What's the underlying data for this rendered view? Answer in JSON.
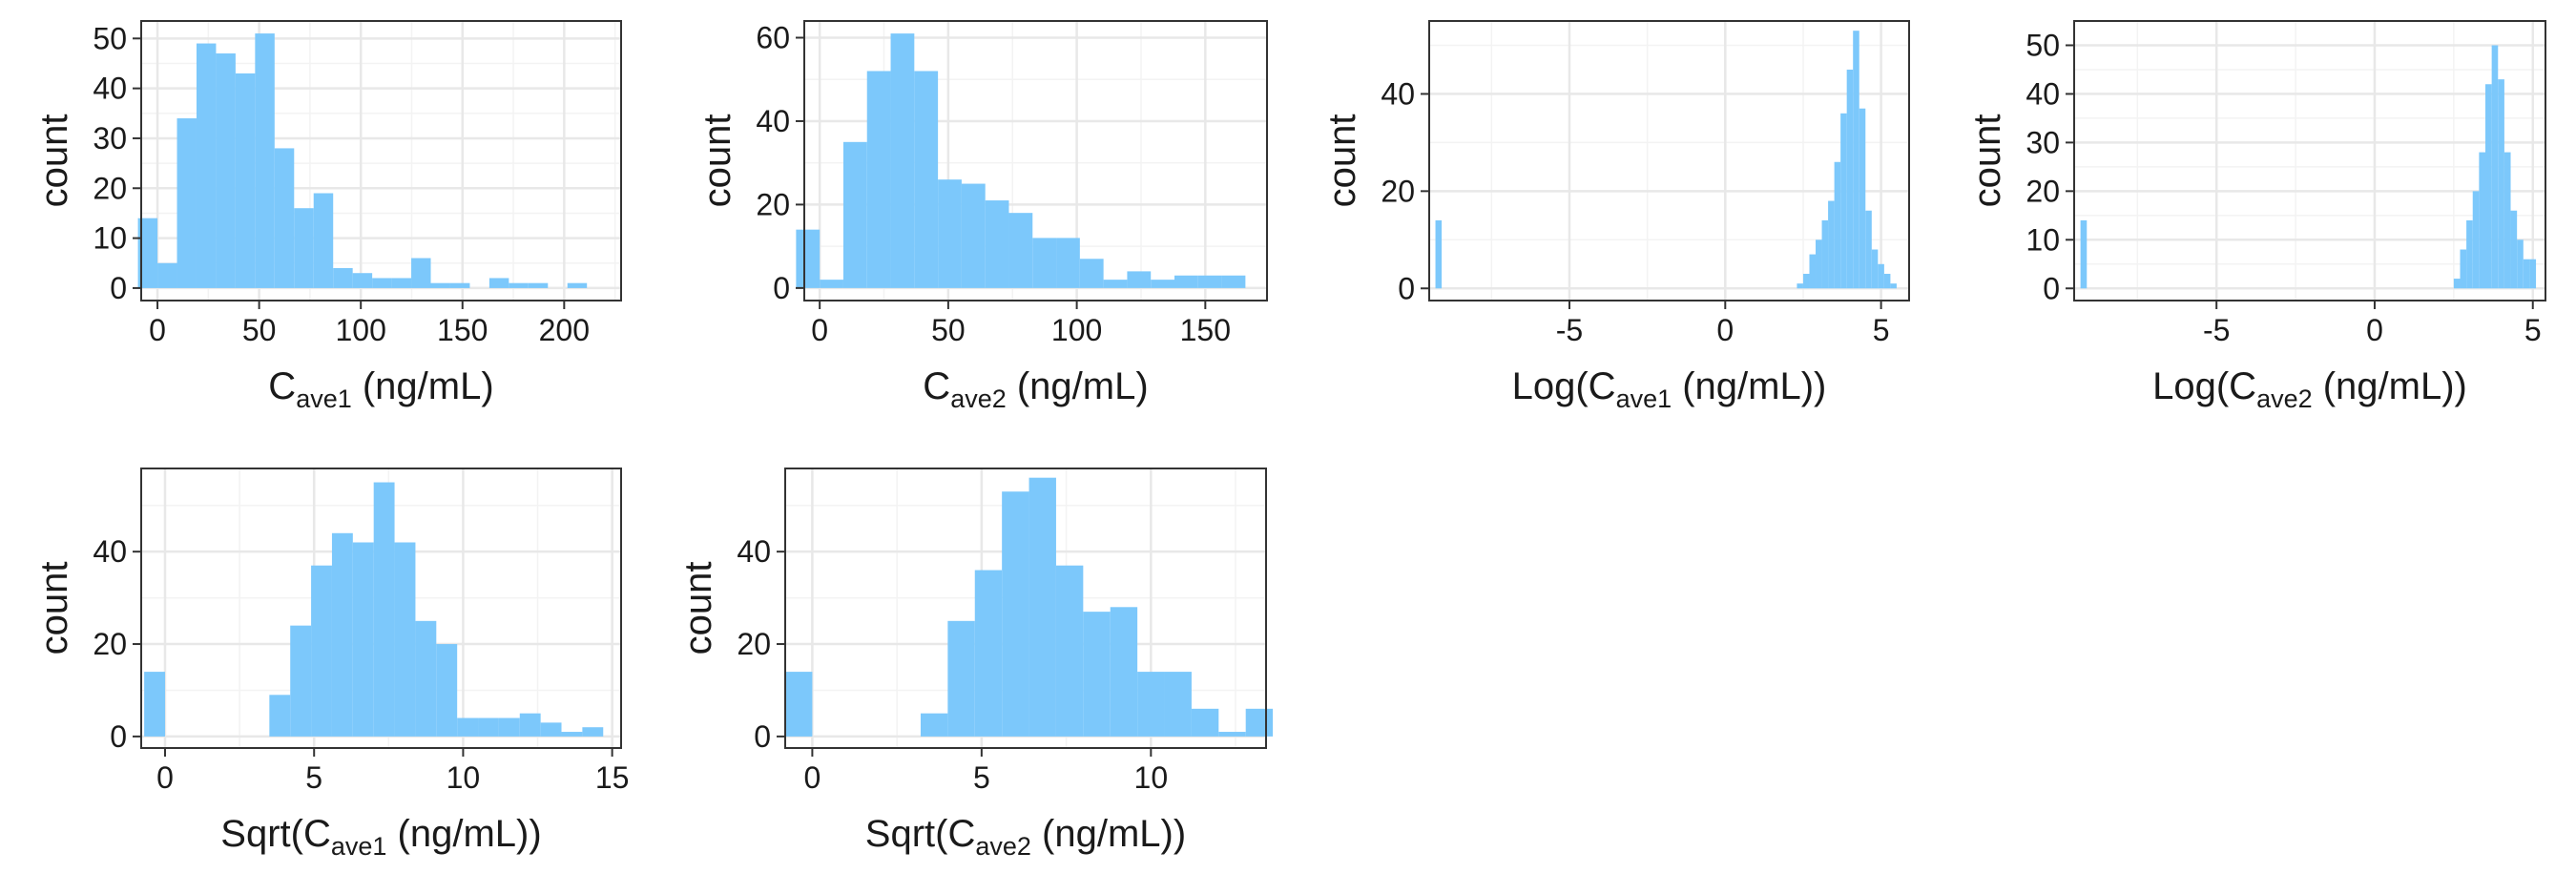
{
  "colors": {
    "bar_fill": "#7cc8fb",
    "panel_border": "#333333",
    "grid_major": "#e8e8e8",
    "grid_minor": "#f3f3f3",
    "tick": "#333333"
  },
  "chart_data": [
    {
      "type": "bar",
      "ylabel": "count",
      "xlabel": {
        "pre": "C",
        "sub": "ave1",
        "post": " (ng/mL)"
      },
      "xlim": [
        -8,
        228
      ],
      "ylim": [
        -2.5,
        53.5
      ],
      "xticks": [
        0,
        50,
        100,
        150,
        200
      ],
      "yticks": [
        0,
        10,
        20,
        30,
        40,
        50
      ],
      "bin_width": 9.6,
      "bins": [
        [
          -4.8,
          14
        ],
        [
          4.8,
          5
        ],
        [
          14.4,
          34
        ],
        [
          24.0,
          49
        ],
        [
          33.6,
          47
        ],
        [
          43.2,
          43
        ],
        [
          52.8,
          51
        ],
        [
          62.4,
          28
        ],
        [
          72.0,
          16
        ],
        [
          81.6,
          19
        ],
        [
          91.2,
          4
        ],
        [
          100.8,
          3
        ],
        [
          110.4,
          2
        ],
        [
          120.0,
          2
        ],
        [
          129.6,
          6
        ],
        [
          139.2,
          1
        ],
        [
          148.8,
          1
        ],
        [
          158.4,
          0
        ],
        [
          168.0,
          2
        ],
        [
          177.6,
          1
        ],
        [
          187.2,
          1
        ],
        [
          196.8,
          0
        ],
        [
          206.4,
          1
        ],
        [
          216.0,
          0
        ]
      ],
      "grid": true
    },
    {
      "type": "bar",
      "ylabel": "count",
      "xlabel": {
        "pre": "C",
        "sub": "ave2",
        "post": " (ng/mL)"
      },
      "xlim": [
        -6,
        174
      ],
      "ylim": [
        -3,
        64
      ],
      "xticks": [
        0,
        50,
        100,
        150
      ],
      "yticks": [
        0,
        20,
        40,
        60
      ],
      "bin_width": 9.2,
      "bins": [
        [
          -4.6,
          14
        ],
        [
          4.6,
          2
        ],
        [
          13.8,
          35
        ],
        [
          23.0,
          52
        ],
        [
          32.2,
          61
        ],
        [
          41.4,
          52
        ],
        [
          50.6,
          26
        ],
        [
          59.8,
          25
        ],
        [
          69.0,
          21
        ],
        [
          78.2,
          18
        ],
        [
          87.4,
          12
        ],
        [
          96.6,
          12
        ],
        [
          105.8,
          7
        ],
        [
          115.0,
          2
        ],
        [
          124.2,
          4
        ],
        [
          133.4,
          2
        ],
        [
          142.6,
          3
        ],
        [
          151.8,
          3
        ],
        [
          161.0,
          3
        ]
      ],
      "grid": true
    },
    {
      "type": "bar",
      "ylabel": "count",
      "xlabel": {
        "pre": "Log(C",
        "sub": "ave1",
        "post": " (ng/mL))"
      },
      "xlim": [
        -9.5,
        5.9
      ],
      "ylim": [
        -2.5,
        55
      ],
      "xticks": [
        -5,
        0,
        5
      ],
      "yticks": [
        0,
        20,
        40
      ],
      "bin_width": 0.2,
      "bins": [
        [
          -9.2,
          14
        ],
        [
          2.4,
          1
        ],
        [
          2.6,
          3
        ],
        [
          2.8,
          7
        ],
        [
          3.0,
          10
        ],
        [
          3.2,
          14
        ],
        [
          3.4,
          18
        ],
        [
          3.6,
          26
        ],
        [
          3.8,
          36
        ],
        [
          4.0,
          45
        ],
        [
          4.2,
          53
        ],
        [
          4.4,
          37
        ],
        [
          4.6,
          16
        ],
        [
          4.8,
          8
        ],
        [
          5.0,
          5
        ],
        [
          5.2,
          3
        ],
        [
          5.4,
          1
        ]
      ],
      "grid": true
    },
    {
      "type": "bar",
      "ylabel": "count",
      "xlabel": {
        "pre": "Log(C",
        "sub": "ave2",
        "post": " (ng/mL))"
      },
      "xlim": [
        -9.5,
        5.4
      ],
      "ylim": [
        -2.5,
        55
      ],
      "xticks": [
        -5,
        0,
        5
      ],
      "yticks": [
        0,
        10,
        20,
        30,
        40,
        50
      ],
      "bin_width": 0.2,
      "bins": [
        [
          -9.2,
          14
        ],
        [
          2.6,
          2
        ],
        [
          2.8,
          8
        ],
        [
          3.0,
          14
        ],
        [
          3.2,
          20
        ],
        [
          3.4,
          28
        ],
        [
          3.6,
          42
        ],
        [
          3.8,
          50
        ],
        [
          4.0,
          43
        ],
        [
          4.2,
          28
        ],
        [
          4.4,
          16
        ],
        [
          4.6,
          10
        ],
        [
          4.8,
          6
        ],
        [
          5.0,
          6
        ]
      ],
      "grid": true
    },
    {
      "type": "bar",
      "ylabel": "count",
      "xlabel": {
        "pre": "Sqrt(C",
        "sub": "ave1",
        "post": " (ng/mL))"
      },
      "xlim": [
        -0.8,
        15.3
      ],
      "ylim": [
        -2.5,
        58
      ],
      "xticks": [
        0,
        5,
        10,
        15
      ],
      "yticks": [
        0,
        20,
        40
      ],
      "bin_width": 0.7,
      "bins": [
        [
          -0.35,
          14
        ],
        [
          0.35,
          0
        ],
        [
          1.05,
          0
        ],
        [
          1.75,
          0
        ],
        [
          2.45,
          0
        ],
        [
          3.15,
          0
        ],
        [
          3.85,
          9
        ],
        [
          4.55,
          24
        ],
        [
          5.25,
          37
        ],
        [
          5.95,
          44
        ],
        [
          6.65,
          42
        ],
        [
          7.35,
          55
        ],
        [
          8.05,
          42
        ],
        [
          8.75,
          25
        ],
        [
          9.45,
          20
        ],
        [
          10.15,
          4
        ],
        [
          10.85,
          4
        ],
        [
          11.55,
          4
        ],
        [
          12.25,
          5
        ],
        [
          12.95,
          3
        ],
        [
          13.65,
          1
        ],
        [
          14.35,
          2
        ]
      ],
      "grid": true
    },
    {
      "type": "bar",
      "ylabel": "count",
      "xlabel": {
        "pre": "Sqrt(C",
        "sub": "ave2",
        "post": " (ng/mL))"
      },
      "xlim": [
        -0.8,
        13.4
      ],
      "ylim": [
        -2.5,
        58
      ],
      "xticks": [
        0,
        5,
        10
      ],
      "yticks": [
        0,
        20,
        40
      ],
      "bin_width": 0.8,
      "bins": [
        [
          -0.4,
          14
        ],
        [
          0.4,
          0
        ],
        [
          1.2,
          0
        ],
        [
          2.0,
          0
        ],
        [
          2.8,
          0
        ],
        [
          3.6,
          5
        ],
        [
          4.4,
          25
        ],
        [
          5.2,
          36
        ],
        [
          6.0,
          53
        ],
        [
          6.8,
          56
        ],
        [
          7.6,
          37
        ],
        [
          8.4,
          27
        ],
        [
          9.2,
          28
        ],
        [
          10.0,
          14
        ],
        [
          10.8,
          14
        ],
        [
          11.6,
          6
        ],
        [
          12.4,
          1
        ],
        [
          13.2,
          6
        ]
      ],
      "grid": true
    }
  ]
}
